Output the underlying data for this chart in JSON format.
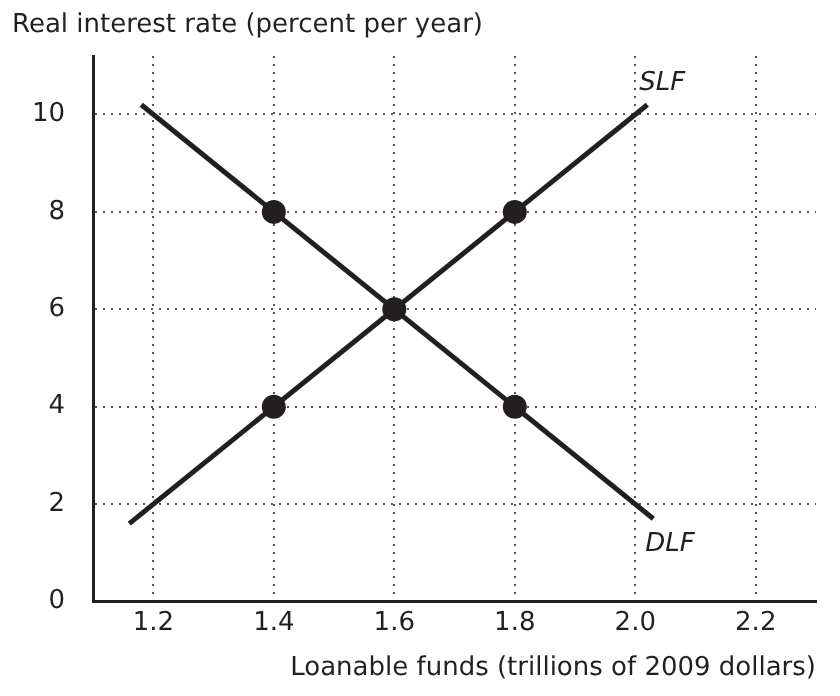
{
  "chart_data": {
    "type": "line",
    "ylabel": "Real interest rate (percent per year)",
    "xlabel": "Loanable funds (trillions of 2009 dollars)",
    "xlim": [
      1.1,
      2.3
    ],
    "xticks": [
      1.2,
      1.4,
      1.6,
      1.8,
      {
        "value": 2,
        "label": "2.0"
      },
      2.2
    ],
    "ylim": [
      0,
      11.2
    ],
    "yticks": [
      {
        "value": 0,
        "label": "0"
      },
      2,
      4,
      6,
      8,
      10
    ],
    "grid": true,
    "legend": false,
    "marker": "none",
    "line_style": "solid",
    "series": [
      {
        "name": "SLF",
        "color": "#231f20",
        "x": [
          1.16,
          2.02
        ],
        "values": [
          1.6,
          10.2
        ]
      },
      {
        "name": "DLF",
        "color": "#231f20",
        "x": [
          1.18,
          2.03
        ],
        "values": [
          10.2,
          1.7
        ]
      },
      {
        "type": "scatter",
        "color": "#231f20",
        "marker": "circle",
        "x": [
          1.4,
          1.8,
          1.6,
          1.4,
          1.8
        ],
        "values": [
          8,
          8,
          6,
          4,
          4
        ]
      }
    ]
  }
}
